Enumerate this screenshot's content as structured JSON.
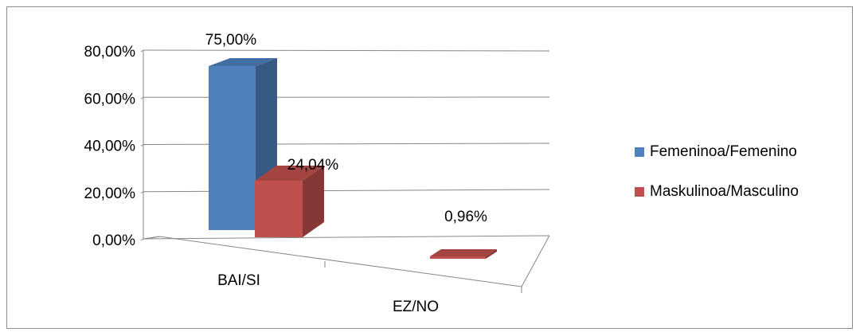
{
  "chart_data": {
    "type": "bar",
    "categories": [
      "BAI/SI",
      "EZ/NO"
    ],
    "series": [
      {
        "name": "Femeninoa/Femenino",
        "values": [
          75.0,
          null
        ],
        "color": "#4f81bd",
        "data_labels": [
          "75,00%",
          ""
        ]
      },
      {
        "name": "Maskulinoa/Masculino",
        "values": [
          24.04,
          0.96
        ],
        "color": "#c0504d",
        "data_labels": [
          "24,04%",
          "0,96%"
        ]
      }
    ],
    "y_ticks": [
      "0,00%",
      "20,00%",
      "40,00%",
      "60,00%",
      "80,00%"
    ],
    "ylim": [
      0,
      80
    ],
    "grid": true,
    "legend_position": "right",
    "three_d": true
  }
}
